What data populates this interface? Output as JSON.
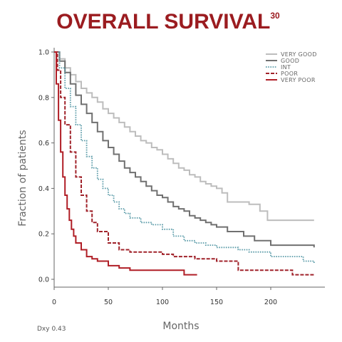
{
  "colors": {
    "title": "#9b1c20",
    "axis": "#666666"
  },
  "chart_data": {
    "type": "line",
    "title": "OVERALL SURVIVAL",
    "title_superscript": "30",
    "xlabel": "Months",
    "ylabel": "Fraction of patients",
    "xlim": [
      0,
      250
    ],
    "ylim": [
      0,
      1.0
    ],
    "xticks": [
      "0",
      "50",
      "100",
      "150",
      "200"
    ],
    "yticks": [
      "0.0",
      "0.2",
      "0.4",
      "0.6",
      "0.8",
      "1.0"
    ],
    "xtick_values": [
      0,
      50,
      100,
      150,
      200
    ],
    "ytick_values": [
      0,
      0.2,
      0.4,
      0.6,
      0.8,
      1.0
    ],
    "grid": false,
    "legend_position": "top-right",
    "footnote": "Dxy 0.43",
    "series": [
      {
        "name": "VERY GOOD",
        "color": "#bdbdbd",
        "dash": "solid",
        "width": 2,
        "x": [
          0,
          5,
          10,
          15,
          20,
          25,
          30,
          35,
          40,
          45,
          50,
          55,
          60,
          65,
          70,
          75,
          80,
          85,
          90,
          95,
          100,
          105,
          110,
          115,
          120,
          125,
          130,
          135,
          140,
          145,
          150,
          155,
          160,
          180,
          190,
          197,
          240
        ],
        "y": [
          1.0,
          0.97,
          0.93,
          0.9,
          0.87,
          0.84,
          0.82,
          0.8,
          0.78,
          0.75,
          0.73,
          0.71,
          0.69,
          0.67,
          0.65,
          0.63,
          0.61,
          0.6,
          0.58,
          0.57,
          0.55,
          0.53,
          0.51,
          0.49,
          0.48,
          0.46,
          0.45,
          0.43,
          0.42,
          0.41,
          0.4,
          0.38,
          0.34,
          0.33,
          0.3,
          0.26,
          0.26
        ]
      },
      {
        "name": "GOOD",
        "color": "#707070",
        "dash": "solid",
        "width": 2,
        "x": [
          0,
          5,
          10,
          15,
          20,
          25,
          30,
          35,
          40,
          45,
          50,
          55,
          60,
          65,
          70,
          75,
          80,
          85,
          90,
          95,
          100,
          105,
          110,
          115,
          120,
          125,
          130,
          135,
          140,
          145,
          150,
          160,
          175,
          185,
          200,
          240
        ],
        "y": [
          1.0,
          0.96,
          0.91,
          0.86,
          0.81,
          0.77,
          0.73,
          0.69,
          0.65,
          0.61,
          0.58,
          0.55,
          0.52,
          0.49,
          0.47,
          0.45,
          0.43,
          0.41,
          0.39,
          0.37,
          0.36,
          0.34,
          0.32,
          0.31,
          0.3,
          0.28,
          0.27,
          0.26,
          0.25,
          0.24,
          0.23,
          0.21,
          0.19,
          0.17,
          0.15,
          0.14
        ]
      },
      {
        "name": "INT",
        "color": "#5a9ba8",
        "dash": "dot",
        "width": 1.8,
        "x": [
          0,
          5,
          10,
          15,
          20,
          25,
          30,
          35,
          40,
          45,
          50,
          55,
          60,
          65,
          70,
          80,
          90,
          100,
          110,
          120,
          130,
          140,
          150,
          160,
          170,
          180,
          200,
          230,
          240
        ],
        "y": [
          1.0,
          0.93,
          0.84,
          0.76,
          0.68,
          0.61,
          0.54,
          0.49,
          0.44,
          0.4,
          0.37,
          0.34,
          0.31,
          0.29,
          0.27,
          0.25,
          0.24,
          0.22,
          0.19,
          0.17,
          0.16,
          0.15,
          0.14,
          0.14,
          0.13,
          0.12,
          0.1,
          0.08,
          0.07
        ]
      },
      {
        "name": "POOR",
        "color": "#a0222a",
        "dash": "dash",
        "width": 2,
        "x": [
          0,
          3,
          6,
          10,
          15,
          20,
          25,
          30,
          35,
          40,
          50,
          60,
          70,
          80,
          90,
          100,
          110,
          120,
          130,
          140,
          150,
          160,
          170,
          180,
          200,
          220,
          240
        ],
        "y": [
          1.0,
          0.92,
          0.8,
          0.68,
          0.56,
          0.45,
          0.37,
          0.3,
          0.25,
          0.21,
          0.16,
          0.13,
          0.12,
          0.12,
          0.12,
          0.11,
          0.1,
          0.1,
          0.09,
          0.09,
          0.08,
          0.08,
          0.04,
          0.04,
          0.04,
          0.02,
          0.02
        ]
      },
      {
        "name": "VERY POOR",
        "color": "#b01e26",
        "dash": "solid",
        "width": 2,
        "x": [
          0,
          2,
          4,
          6,
          8,
          10,
          12,
          14,
          16,
          18,
          20,
          25,
          30,
          35,
          40,
          50,
          60,
          70,
          80,
          90,
          100,
          110,
          120,
          132
        ],
        "y": [
          1.0,
          0.86,
          0.7,
          0.56,
          0.45,
          0.37,
          0.31,
          0.26,
          0.22,
          0.19,
          0.16,
          0.13,
          0.1,
          0.09,
          0.08,
          0.06,
          0.05,
          0.04,
          0.04,
          0.04,
          0.04,
          0.04,
          0.02,
          0.02
        ]
      }
    ]
  }
}
